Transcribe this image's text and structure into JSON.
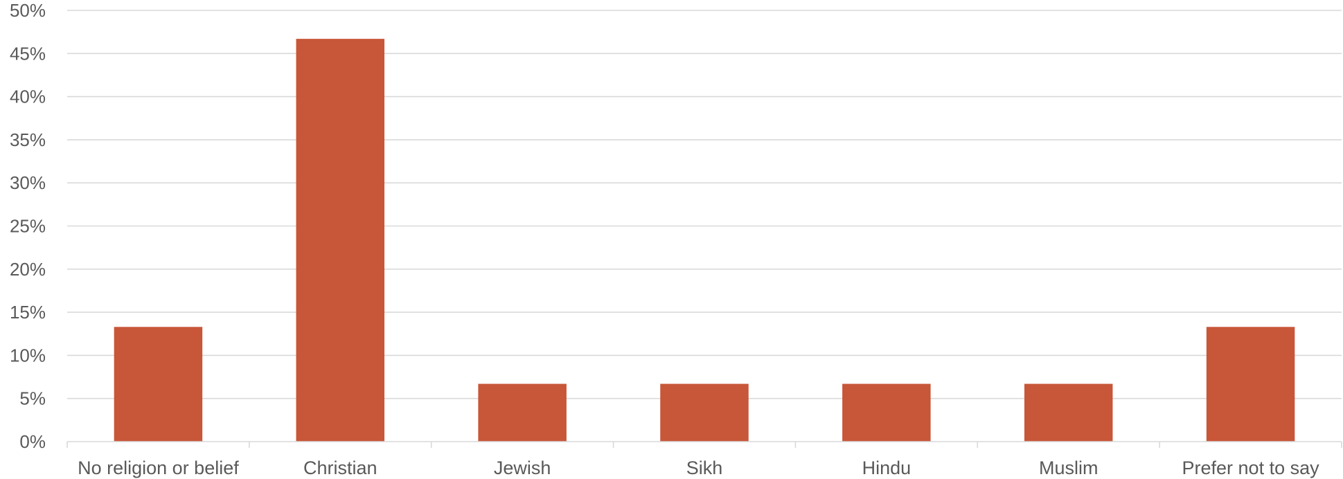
{
  "chart_data": {
    "type": "bar",
    "title": "",
    "xlabel": "",
    "ylabel": "",
    "categories": [
      "No religion or belief",
      "Christian",
      "Jewish",
      "Sikh",
      "Hindu",
      "Muslim",
      "Prefer not to say"
    ],
    "values": [
      13.3,
      46.7,
      6.7,
      6.7,
      6.7,
      6.7,
      13.3
    ],
    "ylim": [
      0,
      50
    ],
    "y_ticks": [
      0,
      5,
      10,
      15,
      20,
      25,
      30,
      35,
      40,
      45,
      50
    ],
    "y_tick_labels": [
      "0%",
      "5%",
      "10%",
      "15%",
      "20%",
      "25%",
      "30%",
      "35%",
      "40%",
      "45%",
      "50%"
    ],
    "grid": true,
    "legend": "none",
    "bar_color": "#C85638",
    "grid_color": "#D9D9D9",
    "label_color": "#595959"
  }
}
